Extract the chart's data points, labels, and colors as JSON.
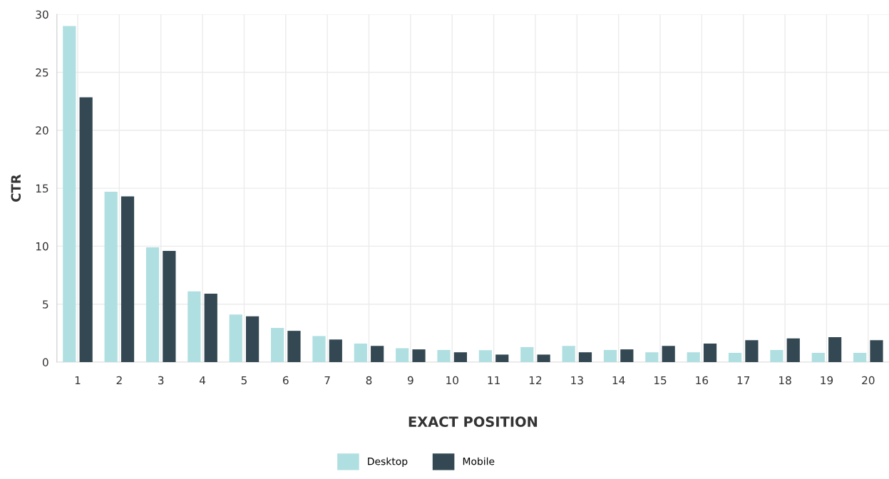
{
  "chart_data": {
    "type": "bar",
    "xlabel": "EXACT POSITION",
    "ylabel": "CTR",
    "categories": [
      "1",
      "2",
      "3",
      "4",
      "5",
      "6",
      "7",
      "8",
      "9",
      "10",
      "11",
      "12",
      "13",
      "14",
      "15",
      "16",
      "17",
      "18",
      "19",
      "20"
    ],
    "series": [
      {
        "name": "Desktop",
        "color": "#b0dfe1",
        "values": [
          29.0,
          14.7,
          9.9,
          6.1,
          4.1,
          2.95,
          2.25,
          1.6,
          1.2,
          1.05,
          1.03,
          1.3,
          1.4,
          1.05,
          0.85,
          0.85,
          0.8,
          1.05,
          0.8,
          0.8
        ]
      },
      {
        "name": "Mobile",
        "color": "#334852",
        "values": [
          22.85,
          14.3,
          9.6,
          5.9,
          3.95,
          2.7,
          1.95,
          1.4,
          1.1,
          0.85,
          0.65,
          0.65,
          0.85,
          1.1,
          1.4,
          1.6,
          1.9,
          2.05,
          2.15,
          1.9
        ]
      }
    ],
    "ylim": [
      0,
      30
    ],
    "yticks": [
      0,
      5,
      10,
      15,
      20,
      25,
      30
    ],
    "grid": true,
    "legend": "bottom"
  }
}
